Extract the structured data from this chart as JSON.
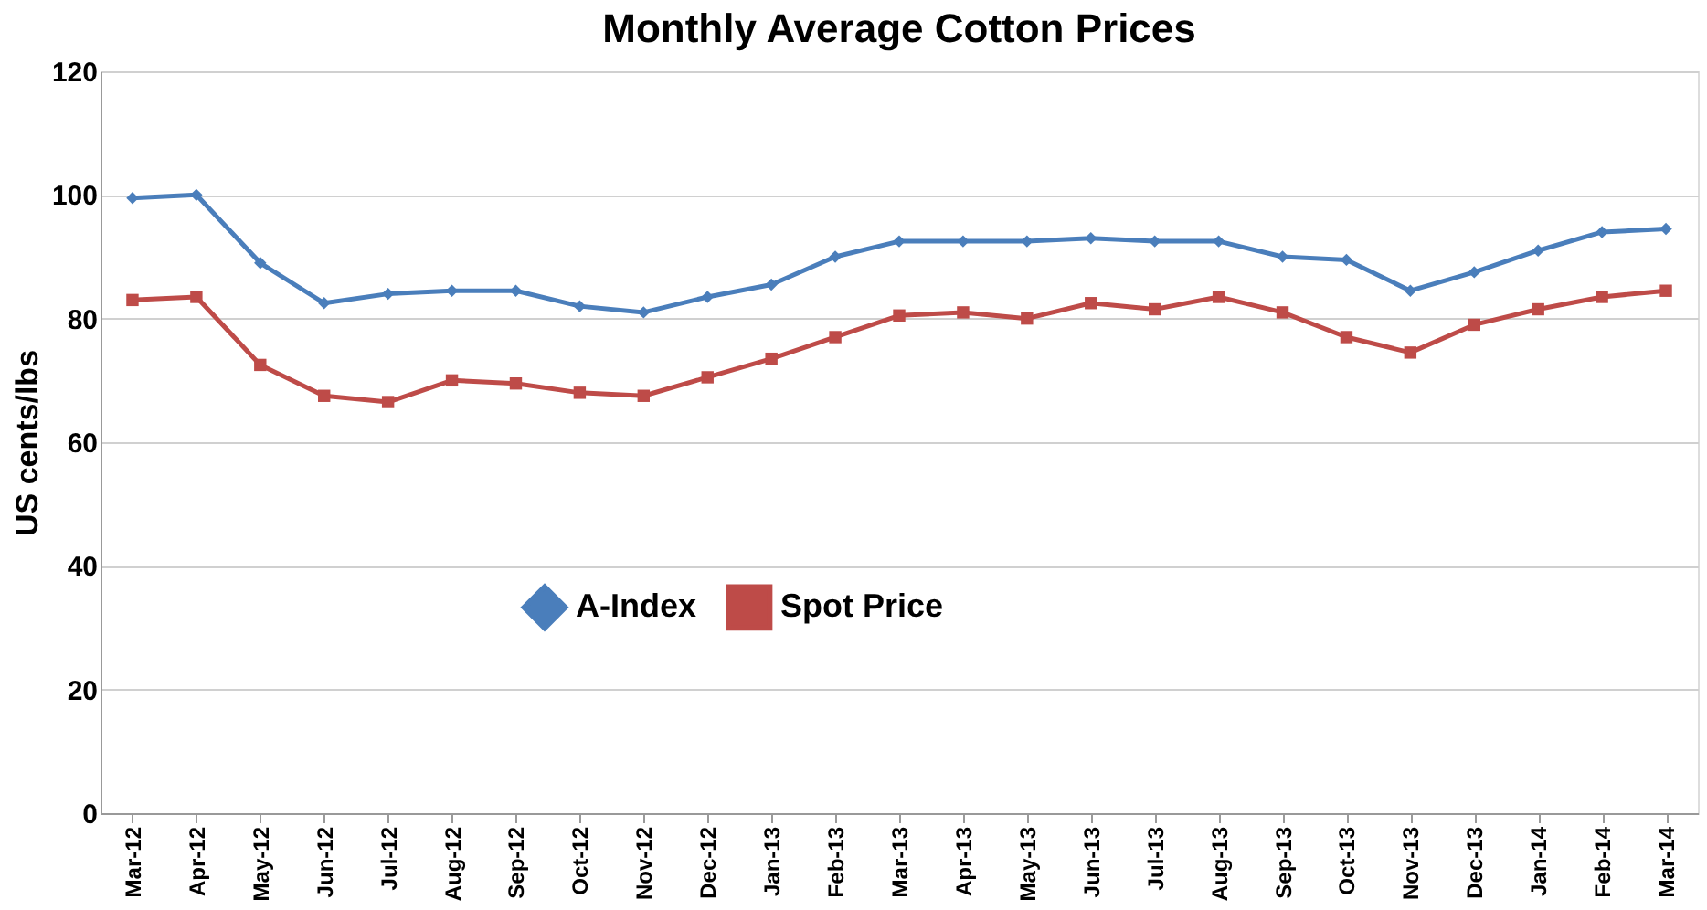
{
  "chart_data": {
    "type": "line",
    "title": "Monthly Average Cotton Prices",
    "ylabel": "US cents/lbs",
    "categories": [
      "Mar-12",
      "Apr-12",
      "May-12",
      "Jun-12",
      "Jul-12",
      "Aug-12",
      "Sep-12",
      "Oct-12",
      "Nov-12",
      "Dec-12",
      "Jan-13",
      "Feb-13",
      "Mar-13",
      "Apr-13",
      "May-13",
      "Jun-13",
      "Jul-13",
      "Aug-13",
      "Sep-13",
      "Oct-13",
      "Nov-13",
      "Dec-13",
      "Jan-14",
      "Feb-14",
      "Mar-14"
    ],
    "series": [
      {
        "name": "A-Index",
        "color": "#4a7ebb",
        "marker": "diamond",
        "values": [
          99.5,
          100,
          89,
          82.5,
          84,
          84.5,
          84.5,
          82,
          81,
          83.5,
          85.5,
          90,
          92.5,
          92.5,
          92.5,
          93,
          92.5,
          92.5,
          90,
          89.5,
          84.5,
          87.5,
          91,
          94,
          94.5
        ]
      },
      {
        "name": "Spot Price",
        "color": "#be4b48",
        "marker": "square",
        "values": [
          83,
          83.5,
          72.5,
          67.5,
          66.5,
          70,
          69.5,
          68,
          67.5,
          70.5,
          73.5,
          77,
          80.5,
          81,
          80,
          82.5,
          81.5,
          83.5,
          81,
          77,
          74.5,
          79,
          81.5,
          83.5,
          84.5
        ]
      }
    ],
    "ylim": [
      0,
      120
    ],
    "yticks": [
      0,
      20,
      40,
      60,
      80,
      100,
      120
    ],
    "grid": "y",
    "legend": "bottom",
    "line_style": "solid"
  }
}
